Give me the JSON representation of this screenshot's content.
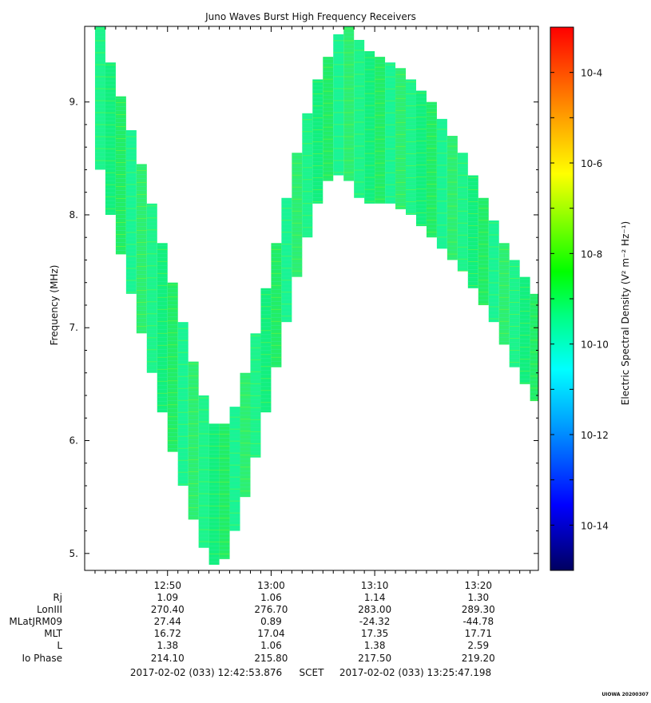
{
  "chart_data": {
    "type": "heatmap",
    "title": "Juno Waves Burst High Frequency Receivers",
    "ylabel": "Frequency (MHz)",
    "ylim": [
      4.85,
      9.67
    ],
    "yticks": [
      "5.",
      "6.",
      "7.",
      "8.",
      "9."
    ],
    "ytick_values": [
      5,
      6,
      7,
      8,
      9
    ],
    "xlim_minutes": [
      12.7,
      13.43
    ],
    "xtick_labels": [
      "12:50",
      "13:00",
      "13:10",
      "13:20"
    ],
    "colorbar": {
      "label": "Electric Spectral Density (V² m⁻² Hz⁻¹)",
      "log_range": [
        -15,
        -3
      ],
      "ticks": [
        "10-4",
        "10-6",
        "10-8",
        "10-10",
        "10-12",
        "10-14"
      ],
      "tick_exponents": [
        -4,
        -6,
        -8,
        -10,
        -12,
        -14
      ]
    },
    "band": {
      "description_free": true,
      "times": [
        "12:43",
        "12:44",
        "12:45",
        "12:46",
        "12:47",
        "12:48",
        "12:49",
        "12:50",
        "12:51",
        "12:52",
        "12:53",
        "12:54",
        "12:55",
        "12:56",
        "12:57",
        "12:58",
        "12:59",
        "13:00",
        "13:01",
        "13:02",
        "13:03",
        "13:04",
        "13:05",
        "13:06",
        "13:07",
        "13:08",
        "13:09",
        "13:10",
        "13:11",
        "13:12",
        "13:13",
        "13:14",
        "13:15",
        "13:16",
        "13:17",
        "13:18",
        "13:19",
        "13:20",
        "13:21",
        "13:22",
        "13:23",
        "13:24",
        "13:25"
      ],
      "low_mhz": [
        8.4,
        8.0,
        7.65,
        7.3,
        6.95,
        6.6,
        6.25,
        5.9,
        5.6,
        5.3,
        5.05,
        4.9,
        4.95,
        5.2,
        5.5,
        5.85,
        6.25,
        6.65,
        7.05,
        7.45,
        7.8,
        8.1,
        8.3,
        8.35,
        8.3,
        8.15,
        8.1,
        8.1,
        8.1,
        8.05,
        8.0,
        7.9,
        7.8,
        7.7,
        7.6,
        7.5,
        7.35,
        7.2,
        7.05,
        6.85,
        6.65,
        6.5,
        6.35
      ],
      "high_mhz": [
        9.67,
        9.35,
        9.05,
        8.75,
        8.45,
        8.1,
        7.75,
        7.4,
        7.05,
        6.7,
        6.4,
        6.15,
        6.15,
        6.3,
        6.6,
        6.95,
        7.35,
        7.75,
        8.15,
        8.55,
        8.9,
        9.2,
        9.4,
        9.6,
        9.67,
        9.55,
        9.45,
        9.4,
        9.35,
        9.3,
        9.2,
        9.1,
        9.0,
        8.85,
        8.7,
        8.55,
        8.35,
        8.15,
        7.95,
        7.75,
        7.6,
        7.45,
        7.3
      ],
      "level_exponent": -10.5
    },
    "ephemeris": {
      "row_labels": [
        "Rj",
        "LonIII",
        "MLatJRM09",
        "MLT",
        "L",
        "Io Phase"
      ],
      "columns": [
        "12:50",
        "13:00",
        "13:10",
        "13:20"
      ],
      "values": [
        [
          "1.09",
          "1.06",
          "1.14",
          "1.30"
        ],
        [
          "270.40",
          "276.70",
          "283.00",
          "289.30"
        ],
        [
          "27.44",
          "0.89",
          "-24.32",
          "-44.78"
        ],
        [
          "16.72",
          "17.04",
          "17.35",
          "17.71"
        ],
        [
          "1.38",
          "1.06",
          "1.38",
          "2.59"
        ],
        [
          "214.10",
          "215.80",
          "217.50",
          "219.20"
        ]
      ]
    },
    "time_range": {
      "start": "2017-02-02 (033) 12:42:53.876",
      "mid": "SCET",
      "end": "2017-02-02 (033) 13:25:47.198"
    },
    "footer": "UIOWA 20200307"
  }
}
